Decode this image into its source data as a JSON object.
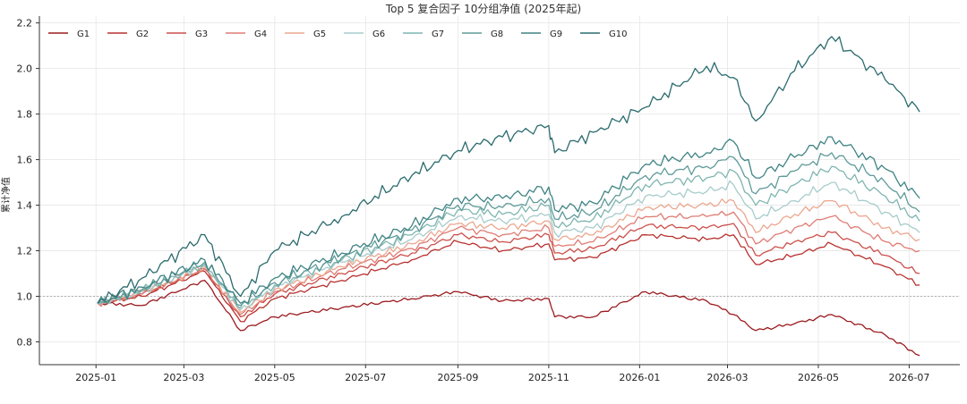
{
  "chart_data": {
    "type": "line",
    "title": "Top 5 复合因子 10分组净值 (2025年起)",
    "xlabel": "",
    "ylabel": "累计净值",
    "x_ticks": [
      "2025-01",
      "2025-03",
      "2025-05",
      "2025-07",
      "2025-09",
      "2025-11",
      "2026-01",
      "2026-03",
      "2026-05",
      "2026-07"
    ],
    "y_ticks": [
      "0.8",
      "1.0",
      "1.2",
      "1.4",
      "1.6",
      "1.8",
      "2.0",
      "2.2"
    ],
    "ylim": [
      0.7,
      2.23
    ],
    "x_range": [
      "2024-11-24",
      "2026-08-04"
    ],
    "grid": true,
    "legend": "top-left, one row",
    "reference_line": 1.0,
    "x": [
      "2025-01-02",
      "2025-02-01",
      "2025-03-15",
      "2025-04-08",
      "2025-05-01",
      "2025-06-15",
      "2025-08-01",
      "2025-09-01",
      "2025-10-01",
      "2025-11-01",
      "2025-11-05",
      "2025-12-01",
      "2026-01-05",
      "2026-02-15",
      "2026-03-05",
      "2026-03-20",
      "2026-04-15",
      "2026-05-10",
      "2026-06-15",
      "2026-07-08"
    ],
    "series": [
      {
        "name": "G1",
        "color": "#9b1b1f",
        "values": [
          0.97,
          0.96,
          1.07,
          0.85,
          0.91,
          0.95,
          0.99,
          1.02,
          0.98,
          0.99,
          0.91,
          0.91,
          1.02,
          0.98,
          0.92,
          0.85,
          0.88,
          0.92,
          0.83,
          0.74
        ]
      },
      {
        "name": "G2",
        "color": "#b8312f",
        "values": [
          0.97,
          1.0,
          1.11,
          0.89,
          0.99,
          1.07,
          1.16,
          1.24,
          1.2,
          1.23,
          1.16,
          1.17,
          1.27,
          1.25,
          1.27,
          1.14,
          1.18,
          1.23,
          1.13,
          1.05
        ]
      },
      {
        "name": "G3",
        "color": "#cc4f4a",
        "values": [
          0.97,
          1.01,
          1.12,
          0.91,
          1.01,
          1.1,
          1.19,
          1.27,
          1.24,
          1.27,
          1.19,
          1.21,
          1.31,
          1.3,
          1.32,
          1.18,
          1.24,
          1.28,
          1.18,
          1.1
        ]
      },
      {
        "name": "G4",
        "color": "#df7c73",
        "values": [
          0.97,
          1.01,
          1.12,
          0.92,
          1.02,
          1.12,
          1.21,
          1.3,
          1.27,
          1.3,
          1.22,
          1.24,
          1.35,
          1.35,
          1.37,
          1.23,
          1.3,
          1.35,
          1.24,
          1.2
        ]
      },
      {
        "name": "G5",
        "color": "#eba78f",
        "values": [
          0.97,
          1.02,
          1.13,
          0.93,
          1.03,
          1.13,
          1.23,
          1.32,
          1.3,
          1.33,
          1.25,
          1.27,
          1.39,
          1.4,
          1.42,
          1.28,
          1.36,
          1.42,
          1.3,
          1.25
        ]
      },
      {
        "name": "G6",
        "color": "#a7cccb",
        "values": [
          0.97,
          1.02,
          1.14,
          0.94,
          1.04,
          1.15,
          1.25,
          1.35,
          1.33,
          1.36,
          1.28,
          1.3,
          1.44,
          1.46,
          1.49,
          1.34,
          1.42,
          1.5,
          1.37,
          1.28
        ]
      },
      {
        "name": "G7",
        "color": "#7fb5b0",
        "values": [
          0.97,
          1.03,
          1.14,
          0.95,
          1.05,
          1.16,
          1.27,
          1.38,
          1.36,
          1.4,
          1.31,
          1.34,
          1.49,
          1.52,
          1.55,
          1.4,
          1.49,
          1.57,
          1.44,
          1.33
        ]
      },
      {
        "name": "G8",
        "color": "#5e9b99",
        "values": [
          0.97,
          1.03,
          1.15,
          0.96,
          1.06,
          1.17,
          1.29,
          1.4,
          1.39,
          1.43,
          1.34,
          1.37,
          1.53,
          1.57,
          1.61,
          1.45,
          1.55,
          1.63,
          1.5,
          1.37
        ]
      },
      {
        "name": "G9",
        "color": "#3f8383",
        "values": [
          0.97,
          1.04,
          1.16,
          0.97,
          1.08,
          1.19,
          1.31,
          1.43,
          1.43,
          1.48,
          1.38,
          1.41,
          1.58,
          1.63,
          1.68,
          1.52,
          1.61,
          1.7,
          1.56,
          1.43
        ]
      },
      {
        "name": "G10",
        "color": "#2b6b6e",
        "values": [
          0.97,
          1.08,
          1.27,
          1.0,
          1.2,
          1.35,
          1.53,
          1.64,
          1.7,
          1.75,
          1.63,
          1.72,
          1.83,
          2.01,
          1.96,
          1.77,
          1.99,
          2.14,
          1.95,
          1.81
        ]
      }
    ]
  }
}
